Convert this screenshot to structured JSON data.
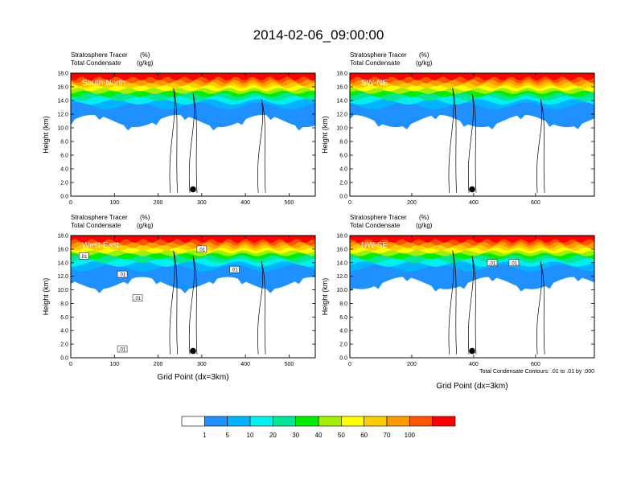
{
  "figure": {
    "title": "2014-02-06_09:00:00",
    "contour_note": "Total Condensate Contours: .01 to .01 by .000",
    "colorbar": {
      "colors": [
        "#ffffff",
        "#1e90ff",
        "#00b4ff",
        "#00f0f0",
        "#00e896",
        "#00ee00",
        "#a0ee00",
        "#ffff00",
        "#ffcc00",
        "#ff9900",
        "#ff5500",
        "#ff0000"
      ],
      "labels": [
        "1",
        "5",
        "10",
        "20",
        "30",
        "40",
        "50",
        "60",
        "70",
        "100"
      ]
    }
  },
  "chart_data": [
    {
      "type": "heatmap",
      "title": "South-North",
      "subtitle_left_1": "Stratosphere Tracer",
      "subtitle_unit_1": "(%)",
      "subtitle_left_2": "Total Condensate",
      "subtitle_unit_2": "(g/kg)",
      "ylabel": "Height (km)",
      "xlabel": "",
      "xlim": [
        0,
        560
      ],
      "ylim": [
        0,
        18
      ],
      "x_ticks": [
        "0",
        "100",
        "200",
        "300",
        "400",
        "500"
      ],
      "x_tick_values": [
        0,
        100,
        200,
        300,
        400,
        500
      ],
      "y_ticks": [
        "0.0",
        "2.0",
        "4.0",
        "6.0",
        "8.0",
        "10.0",
        "12.0",
        "14.0",
        "16.0",
        "18.0"
      ],
      "marker": {
        "x": 280,
        "y": 1.0
      },
      "contour_labels": []
    },
    {
      "type": "heatmap",
      "title": "SW-NE",
      "subtitle_left_1": "Stratosphere Tracer",
      "subtitle_unit_1": "(%)",
      "subtitle_left_2": "Total Condensate",
      "subtitle_unit_2": "(g/kg)",
      "ylabel": "Height (km)",
      "xlabel": "",
      "xlim": [
        0,
        790
      ],
      "ylim": [
        0,
        18
      ],
      "x_ticks": [
        "0",
        "200",
        "400",
        "600"
      ],
      "x_tick_values": [
        0,
        200,
        400,
        600
      ],
      "y_ticks": [
        "0.0",
        "2.0",
        "4.0",
        "6.0",
        "8.0",
        "10.0",
        "12.0",
        "14.0",
        "16.0",
        "18.0"
      ],
      "marker": {
        "x": 395,
        "y": 1.0
      },
      "contour_labels": []
    },
    {
      "type": "heatmap",
      "title": "West-East",
      "subtitle_left_1": "Stratosphere Tracer",
      "subtitle_unit_1": "(%)",
      "subtitle_left_2": "Total Condensate",
      "subtitle_unit_2": "(g/kg)",
      "ylabel": "Height (km)",
      "xlabel": "Grid Point (dx=3km)",
      "xlim": [
        0,
        560
      ],
      "ylim": [
        0,
        18
      ],
      "x_ticks": [
        "0",
        "100",
        "200",
        "300",
        "400",
        "500"
      ],
      "x_tick_values": [
        0,
        100,
        200,
        300,
        400,
        500
      ],
      "y_ticks": [
        "0.0",
        "2.0",
        "4.0",
        "6.0",
        "8.0",
        "10.0",
        "12.0",
        "14.0",
        "16.0",
        "18.0"
      ],
      "marker": {
        "x": 280,
        "y": 1.0
      },
      "contour_labels": [
        {
          "text": ".01",
          "x": 30,
          "y": 15.0
        },
        {
          "text": ".01",
          "x": 118,
          "y": 12.3
        },
        {
          "text": ".01",
          "x": 153,
          "y": 8.8
        },
        {
          "text": ".01",
          "x": 118,
          "y": 1.3
        },
        {
          "text": ".01",
          "x": 300,
          "y": 16.0
        },
        {
          "text": ".01",
          "x": 375,
          "y": 13.0
        }
      ]
    },
    {
      "type": "heatmap",
      "title": "NW-SE",
      "subtitle_left_1": "Stratosphere Tracer",
      "subtitle_unit_1": "(%)",
      "subtitle_left_2": "Total Condensate",
      "subtitle_unit_2": "(g/kg)",
      "ylabel": "Height (km)",
      "xlabel": "Grid Point (dx=3km)",
      "xlim": [
        0,
        790
      ],
      "ylim": [
        0,
        18
      ],
      "x_ticks": [
        "0",
        "200",
        "400",
        "600"
      ],
      "x_tick_values": [
        0,
        200,
        400,
        600
      ],
      "y_ticks": [
        "0.0",
        "2.0",
        "4.0",
        "6.0",
        "8.0",
        "10.0",
        "12.0",
        "14.0",
        "16.0",
        "18.0"
      ],
      "marker": {
        "x": 395,
        "y": 1.0
      },
      "contour_labels": [
        {
          "text": ".01",
          "x": 460,
          "y": 14.0
        },
        {
          "text": ".01",
          "x": 530,
          "y": 14.0
        }
      ]
    }
  ]
}
